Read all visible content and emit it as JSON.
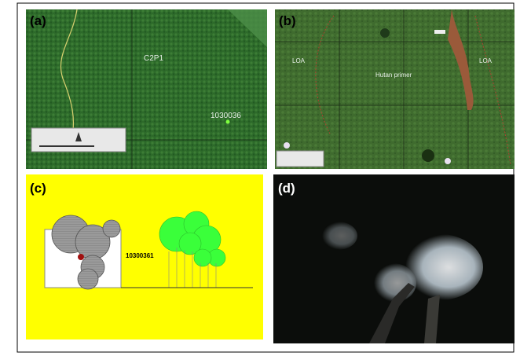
{
  "panels": [
    {
      "label": "(a)",
      "annotations": [
        "C2P1",
        "1030036"
      ]
    },
    {
      "label": "(b)",
      "annotations": [
        "LOA",
        "Hutan primer",
        "LOA"
      ]
    },
    {
      "label": "(c)",
      "annotations": [
        "10300361"
      ]
    },
    {
      "label": "(d)",
      "annotations": []
    }
  ]
}
